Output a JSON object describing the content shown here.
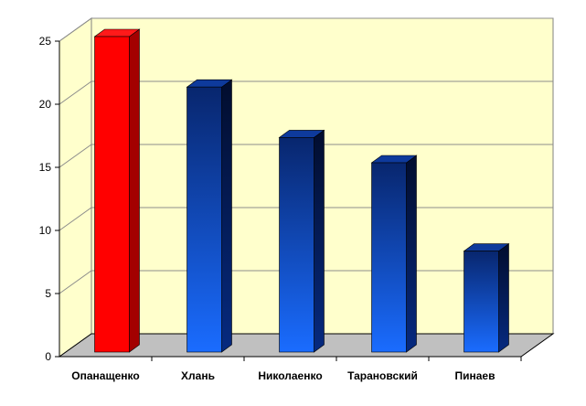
{
  "chart_data": {
    "type": "bar",
    "categories": [
      "Опанащенко",
      "Хлань",
      "Николаенко",
      "Тарановский",
      "Пинаев"
    ],
    "values": [
      25,
      21,
      17,
      15,
      8
    ],
    "ylim": [
      0,
      25
    ],
    "yticks": [
      0,
      5,
      10,
      15,
      20,
      25
    ],
    "grid": true,
    "legend": "none",
    "title": "",
    "xlabel": "",
    "ylabel": "",
    "colors": {
      "highlight": "#ff0000",
      "bar_dark": "#0a2a78",
      "bar_light": "#1a6aff",
      "wall": "#ffffcc",
      "floor": "#c0c0c0"
    },
    "highlight_index": 0
  }
}
